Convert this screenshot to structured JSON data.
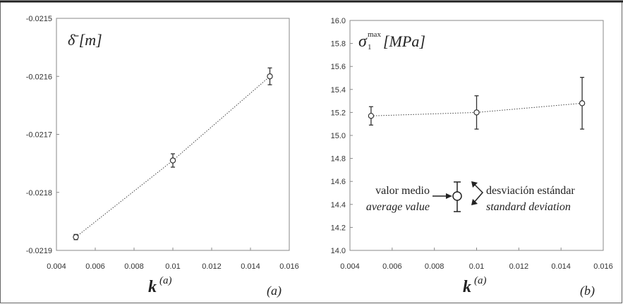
{
  "chart_data": [
    {
      "type": "scatter",
      "panel_label": "(a)",
      "ylabel": "δ̄ [m]",
      "xlabel": "k",
      "xlabel_sup": "(a)",
      "xlim": [
        0.004,
        0.016
      ],
      "ylim": [
        -0.0219,
        -0.0215
      ],
      "x_ticks": [
        "0.004",
        "0.006",
        "0.008",
        "0.01",
        "0.012",
        "0.014",
        "0.016"
      ],
      "y_ticks": [
        "-0.0215",
        "-0.0216",
        "-0.0217",
        "-0.0218",
        "-0.0219"
      ],
      "grid": false,
      "series": [
        {
          "x": [
            0.005,
            0.01,
            0.015
          ],
          "y": [
            -0.021877,
            -0.021745,
            -0.0216
          ],
          "error": [
            4.5e-06,
            1.15e-05,
            1.45e-05
          ],
          "line_style": "dotted",
          "marker": "open-circle"
        }
      ]
    },
    {
      "type": "scatter",
      "panel_label": "(b)",
      "ylabel": "σ1max [MPa]",
      "ylabel_sub": "1",
      "ylabel_sup": "max",
      "xlabel": "k",
      "xlabel_sup": "(a)",
      "xlim": [
        0.004,
        0.016
      ],
      "ylim": [
        14.0,
        16.0
      ],
      "x_ticks": [
        "0.004",
        "0.006",
        "0.008",
        "0.01",
        "0.012",
        "0.014",
        "0.016"
      ],
      "y_ticks": [
        "16.0",
        "15.8",
        "15.6",
        "15.4",
        "15.2",
        "15.0",
        "14.8",
        "14.6",
        "14.4",
        "14.2",
        "14.0"
      ],
      "grid": false,
      "series": [
        {
          "x": [
            0.005,
            0.01,
            0.015
          ],
          "y": [
            15.17,
            15.2,
            15.28
          ],
          "error": [
            0.08,
            0.145,
            0.225
          ],
          "line_style": "dotted",
          "marker": "open-circle"
        }
      ],
      "legend": {
        "left_line1": "valor medio",
        "left_line2": "average value",
        "right_line1": "desviación estándar",
        "right_line2": "standard deviation"
      }
    }
  ],
  "colors": {
    "axis": "#888888",
    "marker": "#333333",
    "line": "#444444"
  }
}
